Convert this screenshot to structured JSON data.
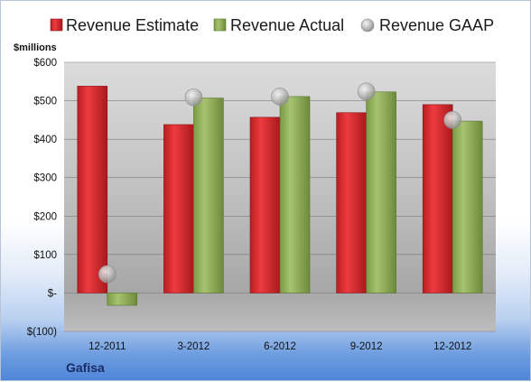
{
  "chart_data": {
    "type": "bar",
    "title": "",
    "ylabel": "$millions",
    "xlabel": "",
    "company": "Gafisa",
    "categories": [
      "12-2011",
      "3-2012",
      "6-2012",
      "9-2012",
      "12-2012"
    ],
    "series": [
      {
        "name": "Revenue Estimate",
        "kind": "bar",
        "color": "#d42a2f",
        "values": [
          538,
          438,
          457,
          469,
          490
        ]
      },
      {
        "name": "Revenue Actual",
        "kind": "bar",
        "color": "#8fb05a",
        "values": [
          -32,
          507,
          511,
          523,
          447
        ]
      },
      {
        "name": "Revenue GAAP",
        "kind": "marker",
        "color": "#b8b8b8",
        "values": [
          49,
          509,
          511,
          524,
          450
        ]
      }
    ],
    "ylim": [
      -100,
      600
    ],
    "yticks": [
      -100,
      0,
      100,
      200,
      300,
      400,
      500,
      600
    ],
    "ytick_labels": [
      "$(100)",
      "$-",
      "$100",
      "$200",
      "$300",
      "$400",
      "$500",
      "$600"
    ],
    "grid": true,
    "legend_position": "top"
  }
}
